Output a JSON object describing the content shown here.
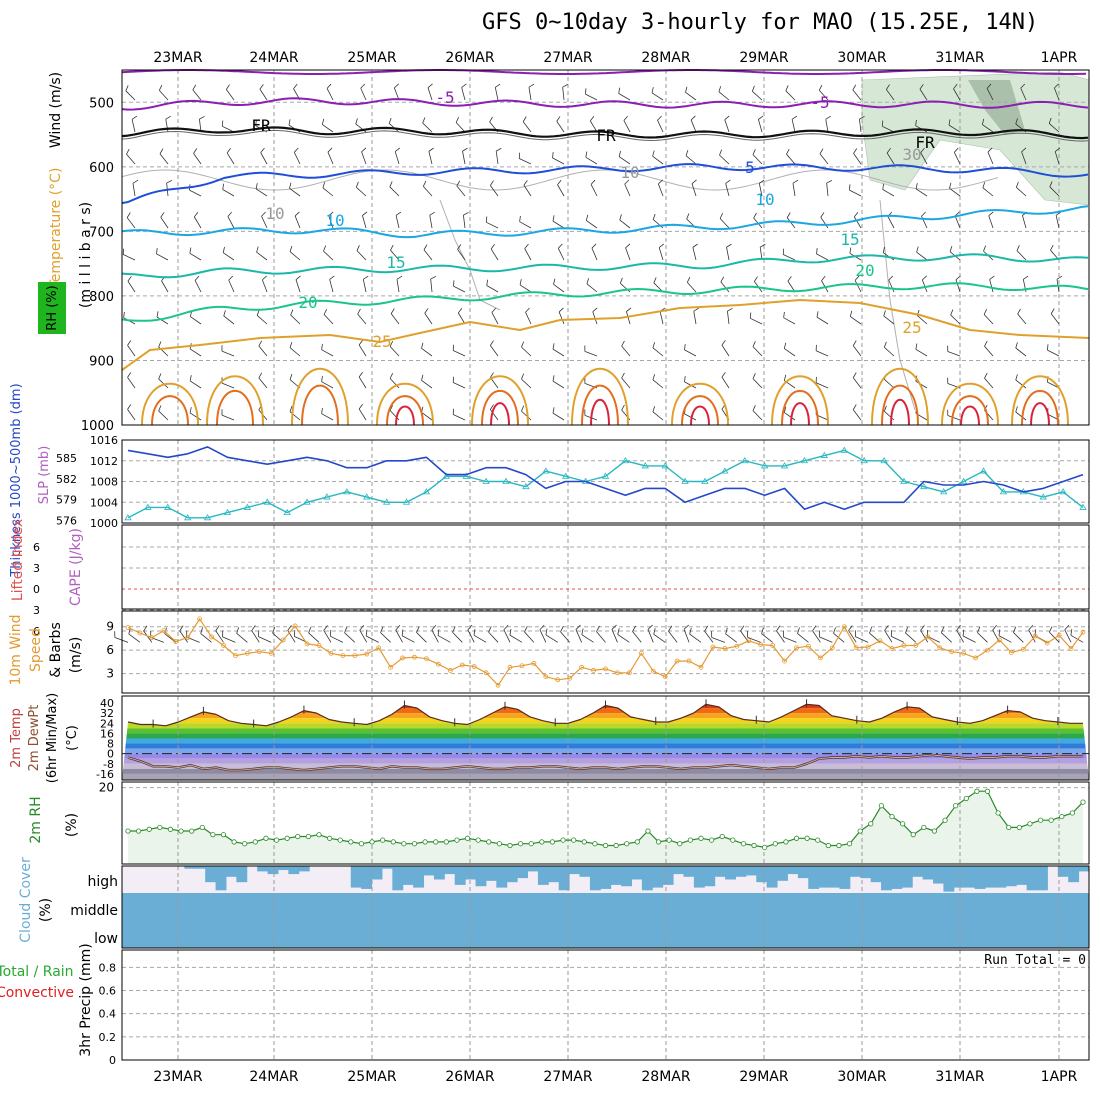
{
  "title": "GFS 0~10day 3-hourly for MAO (15.25E, 14N)",
  "dates": [
    "23MAR",
    "24MAR",
    "25MAR",
    "26MAR",
    "27MAR",
    "28MAR",
    "29MAR",
    "30MAR",
    "31MAR",
    "1APR"
  ],
  "colors": {
    "purple": "#8a1fb0",
    "blue": "#1f4fd6",
    "cyan": "#1ba8e0",
    "teal": "#1bb8a8",
    "green": "#1ac58a",
    "orange": "#e0a02c",
    "dorange": "#e36e1e",
    "red": "#d8243a",
    "bluemag": "#2448c8",
    "slp": "#28b8c0",
    "wind10": "#e69a32",
    "rh2": "#2a8a2a",
    "cloud": "#6aaed6"
  },
  "chart_data": [
    {
      "type": "line",
      "panel": "upper-air",
      "ylabel_parts": [
        "Wind (m/s)",
        "Temperature (°C)",
        "RH (%)",
        "(m i l l i b a r s)"
      ],
      "y_ticks": [
        500,
        600,
        700,
        800,
        900,
        1000
      ],
      "ylim": [
        1000,
        450
      ],
      "contour_labels": [
        "-5",
        "-5",
        "FR",
        "FR",
        "FR",
        "5",
        "10",
        "10",
        "15",
        "15",
        "20",
        "20",
        "25",
        "25",
        "10",
        "10",
        "30"
      ],
      "series": [
        {
          "name": "-5",
          "level_mb": [
            507,
            500,
            498,
            500,
            502,
            503,
            504,
            503,
            503,
            504,
            504
          ]
        },
        {
          "name": "FR",
          "level_mb": [
            548,
            542,
            545,
            544,
            548,
            550,
            550,
            549,
            547,
            546,
            551
          ]
        },
        {
          "name": "5",
          "level_mb": [
            655,
            615,
            612,
            608,
            606,
            603,
            600,
            601,
            602,
            605,
            612
          ]
        },
        {
          "name": "10",
          "level_mb": [
            703,
            700,
            698,
            705,
            702,
            698,
            693,
            688,
            680,
            672,
            665
          ]
        },
        {
          "name": "15",
          "level_mb": [
            770,
            762,
            760,
            758,
            757,
            755,
            753,
            744,
            741,
            740,
            745
          ]
        },
        {
          "name": "20",
          "level_mb": [
            838,
            820,
            812,
            806,
            800,
            795,
            792,
            788,
            785,
            785,
            790
          ]
        }
      ]
    },
    {
      "type": "line",
      "panel": "thickness-slp",
      "ylabel_parts": [
        "Thickness 1000~500mb (dm)",
        "SLP (mb)"
      ],
      "left_ticks": [
        576,
        579,
        582,
        585
      ],
      "right_ticks": [
        1000,
        1004,
        1008,
        1012,
        1016
      ],
      "series": [
        {
          "name": "SLP",
          "values": [
            1001,
            1003,
            1003,
            1001,
            1001,
            1002,
            1003,
            1004,
            1002,
            1004,
            1005,
            1006,
            1005,
            1004,
            1004,
            1006,
            1009,
            1009,
            1008,
            1008,
            1007,
            1010,
            1009,
            1008,
            1009,
            1012,
            1011,
            1011,
            1008,
            1008,
            1010,
            1012,
            1011,
            1011,
            1012,
            1013,
            1014,
            1012,
            1012,
            1008,
            1007,
            1006,
            1008,
            1010,
            1006,
            1006,
            1005,
            1006,
            1003
          ]
        },
        {
          "name": "Thickness",
          "values": [
            585.5,
            585,
            584.5,
            585,
            586,
            584.5,
            584,
            583.5,
            584,
            584.5,
            584,
            583,
            583,
            584,
            584,
            584.5,
            582,
            582,
            583,
            583,
            582,
            580,
            581,
            581,
            580,
            579,
            580,
            580,
            578,
            579,
            580,
            580,
            579,
            580,
            577,
            578,
            577,
            578,
            578,
            578,
            581,
            580.5,
            580.5,
            581,
            580.5,
            579.5,
            580,
            581,
            582
          ]
        }
      ]
    },
    {
      "type": "line",
      "panel": "cape-li",
      "ylabel_parts": [
        "Lifted Index",
        "CAPE (J/kg)"
      ],
      "y_ticks": [
        "6",
        "3",
        "0",
        "3",
        "6"
      ],
      "values": []
    },
    {
      "type": "line",
      "panel": "10m-wind",
      "ylabel_parts": [
        "10m Wind",
        "Speed",
        "& Barbs",
        "(m/s)"
      ],
      "y_ticks": [
        3,
        6,
        9
      ],
      "values": [
        8.9,
        8.2,
        7.6,
        8.5,
        7.1,
        7.6,
        10.0,
        7.7,
        6.6,
        5.3,
        5.6,
        5.8,
        5.6,
        7.3,
        9.1,
        6.8,
        6.6,
        5.6,
        5.3,
        5.3,
        5.5,
        6.3,
        3.8,
        5.0,
        5.1,
        4.9,
        4.2,
        3.4,
        4.1,
        3.9,
        3.1,
        1.5,
        3.8,
        4.0,
        4.3,
        2.6,
        2.2,
        2.4,
        3.8,
        3.4,
        3.6,
        3.1,
        3.1,
        5.6,
        3.3,
        2.6,
        4.6,
        4.6,
        3.8,
        6.4,
        6.2,
        6.5,
        7.2,
        6.7,
        6.6,
        4.6,
        6.3,
        6.5,
        5.0,
        6.3,
        9.0,
        6.3,
        6.4,
        7.2,
        6.2,
        6.6,
        6.6,
        7.7,
        6.3,
        5.8,
        5.6,
        5.0,
        6.0,
        7.3,
        5.7,
        6.1,
        7.8,
        6.9,
        7.9,
        6.2,
        8.3
      ]
    },
    {
      "type": "area",
      "panel": "2m-temp",
      "ylabel_parts": [
        "2m Temp",
        "2m DewPt",
        "(6hr Min/Max)",
        "(°C)"
      ],
      "y_ticks": [
        "40",
        "32",
        "24",
        "16",
        "8",
        "0",
        "-8",
        "-16"
      ],
      "temp": [
        25,
        23,
        23,
        22,
        25,
        29,
        33,
        31,
        26,
        24,
        23,
        22,
        25,
        29,
        34,
        32,
        27,
        25,
        24,
        23,
        26,
        31,
        38,
        36,
        29,
        26,
        24,
        23,
        27,
        32,
        37,
        35,
        29,
        26,
        24,
        24,
        27,
        32,
        38,
        36,
        29,
        27,
        25,
        25,
        28,
        32,
        39,
        37,
        30,
        27,
        26,
        25,
        29,
        34,
        39,
        38,
        30,
        28,
        26,
        25,
        28,
        33,
        37,
        36,
        29,
        27,
        25,
        24,
        26,
        30,
        34,
        33,
        28,
        26,
        25,
        24,
        24
      ],
      "dewpt": [
        -3,
        -6,
        -10,
        -10,
        -11,
        -9,
        -12,
        -11,
        -13,
        -13,
        -12,
        -11,
        -11,
        -12,
        -13,
        -12,
        -11,
        -10,
        -10,
        -11,
        -12,
        -10,
        -11,
        -11,
        -12,
        -12,
        -11,
        -10,
        -11,
        -12,
        -12,
        -11,
        -11,
        -10,
        -10,
        -11,
        -12,
        -11,
        -11,
        -12,
        -11,
        -10,
        -10,
        -11,
        -12,
        -11,
        -11,
        -10,
        -9,
        -10,
        -11,
        -12,
        -11,
        -11,
        -8,
        -4,
        -3,
        -3,
        -2,
        -3,
        -2,
        -3,
        -3,
        -2,
        -1,
        -2,
        -3,
        -4,
        -3,
        -3,
        -2,
        -2,
        -3,
        -3,
        -2,
        -2,
        -2
      ]
    },
    {
      "type": "area",
      "panel": "2m-rh",
      "ylabel_parts": [
        "2m RH",
        "(%)"
      ],
      "y_ticks": [
        20
      ],
      "values": [
        8,
        8,
        8.5,
        9,
        8.5,
        8,
        8,
        9,
        7,
        7,
        5,
        4.5,
        5,
        6,
        5.5,
        6,
        6.5,
        6.5,
        7,
        6,
        5.5,
        5,
        4.5,
        5,
        5.5,
        5,
        4.5,
        4.5,
        5,
        5,
        5,
        5.5,
        6,
        5.5,
        5,
        4.5,
        4,
        4.5,
        4.5,
        5,
        5,
        5.5,
        5.5,
        5,
        4.5,
        4,
        4,
        4.5,
        5,
        8,
        5,
        5.5,
        4.5,
        5.5,
        6,
        5.5,
        6.5,
        5.5,
        4.5,
        4,
        3.5,
        4.5,
        5,
        6,
        6,
        5.5,
        4,
        4,
        4.5,
        8,
        10,
        15,
        12,
        10,
        7,
        9,
        8,
        11,
        15,
        17,
        19,
        19,
        13,
        9,
        9,
        10,
        11,
        11,
        12,
        13,
        16
      ]
    },
    {
      "type": "bar",
      "panel": "cloud-cover",
      "ylabel_parts": [
        "Cloud Cover",
        "(%)"
      ],
      "levels": [
        "high",
        "middle",
        "low"
      ],
      "high": [
        0,
        0,
        0,
        0,
        0,
        0,
        0.1,
        0.1,
        0.6,
        0.9,
        0.4,
        0.6,
        0,
        0.2,
        0.3,
        0.15,
        0.3,
        0.2,
        0,
        0,
        0,
        0,
        0.8,
        0.85,
        0.5,
        0.1,
        0.9,
        0.7,
        0.8,
        0.35,
        0.5,
        0.3,
        0.7,
        0.5,
        0.75,
        0.55,
        0.8,
        0.6,
        0.45,
        0.2,
        0.7,
        0.6,
        0.9,
        0.3,
        0.4,
        0.9,
        0.85,
        0.7,
        0.75,
        0.5,
        0.9,
        0.8,
        0.7,
        0.3,
        0.4,
        0.8,
        0.75,
        0.4,
        0.5,
        0.4,
        0.35,
        0.6,
        0.8,
        0.55,
        0.3,
        0.45,
        0.85,
        0.8,
        0.8,
        0.85,
        0.4,
        0.45,
        0.6,
        0.9,
        0.85,
        0.8,
        0.4,
        0.5,
        0.65,
        0.95,
        0.8,
        0.8,
        0.85,
        0.8,
        0.8,
        0.75,
        0.7,
        0.9,
        0.9,
        0,
        0.4,
        0.6,
        0.2
      ],
      "middle": [
        1
      ],
      "low": [
        1
      ]
    },
    {
      "type": "bar",
      "panel": "precip",
      "ylabel_parts": [
        "Total / Rain",
        "Convective",
        "3hr Precip (mm)"
      ],
      "y_ticks": [
        "0",
        "0.2",
        "0.4",
        "0.6",
        "0.8"
      ],
      "annotation": "Run Total = 0",
      "values": []
    }
  ]
}
